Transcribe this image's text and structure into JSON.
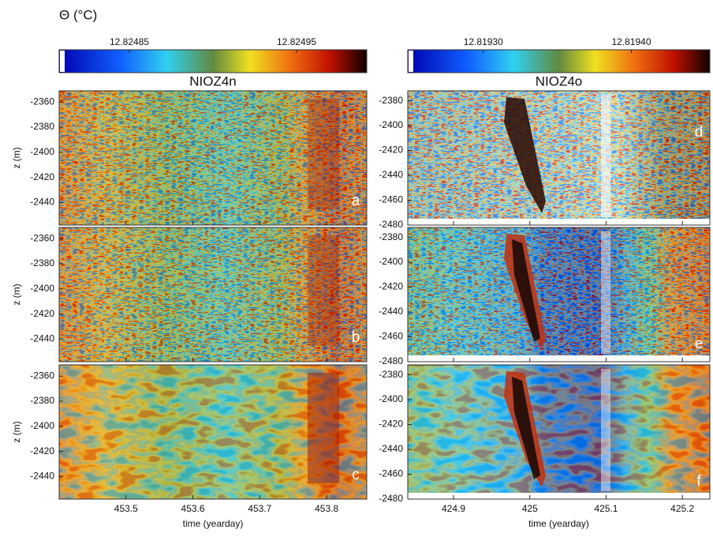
{
  "chart_data": [
    {
      "type": "heatmap",
      "title": "NIOZ4n",
      "colorbar": {
        "label": "Θ (°C)",
        "lim": [
          12.824808,
          12.824992
        ],
        "ticks": [
          12.82485,
          12.82495
        ]
      },
      "xlabel": "time (yearday)",
      "xlim": [
        453.4,
        453.86
      ],
      "xticks": [
        453.5,
        453.6,
        453.7,
        453.8
      ],
      "panels": [
        {
          "label": "a",
          "ylabel": "z (m)",
          "ylim": [
            -2458,
            -2351
          ],
          "yticks": [
            -2360,
            -2380,
            -2400,
            -2420,
            -2440
          ]
        },
        {
          "label": "b",
          "ylabel": "z (m)",
          "ylim": [
            -2458,
            -2351
          ],
          "yticks": [
            -2360,
            -2380,
            -2400,
            -2420,
            -2440
          ]
        },
        {
          "label": "c",
          "ylabel": "z (m)",
          "ylim": [
            -2458,
            -2351
          ],
          "yticks": [
            -2360,
            -2380,
            -2400,
            -2420,
            -2440
          ]
        }
      ]
    },
    {
      "type": "heatmap",
      "title": "NIOZ4o",
      "colorbar": {
        "lim": [
          12.819249,
          12.819453
        ],
        "ticks": [
          {
            "value": 12.8193,
            "label": "12.81930"
          },
          {
            "value": 12.8194,
            "label": "12.81940"
          }
        ]
      },
      "xlabel": "time (yearday)",
      "xlim": [
        424.84,
        425.236
      ],
      "xticks": [
        424.9,
        425,
        425.1,
        425.2
      ],
      "panels": [
        {
          "label": "d",
          "ylim": [
            -2480,
            -2372
          ],
          "yticks": [
            -2380,
            -2400,
            -2420,
            -2440,
            -2460,
            -2480
          ]
        },
        {
          "label": "e",
          "ylim": [
            -2480,
            -2372
          ],
          "yticks": [
            -2380,
            -2400,
            -2420,
            -2440,
            -2460,
            -2480
          ]
        },
        {
          "label": "f",
          "ylim": [
            -2480,
            -2372
          ],
          "yticks": [
            -2380,
            -2400,
            -2420,
            -2440,
            -2460,
            -2480
          ]
        }
      ]
    }
  ]
}
